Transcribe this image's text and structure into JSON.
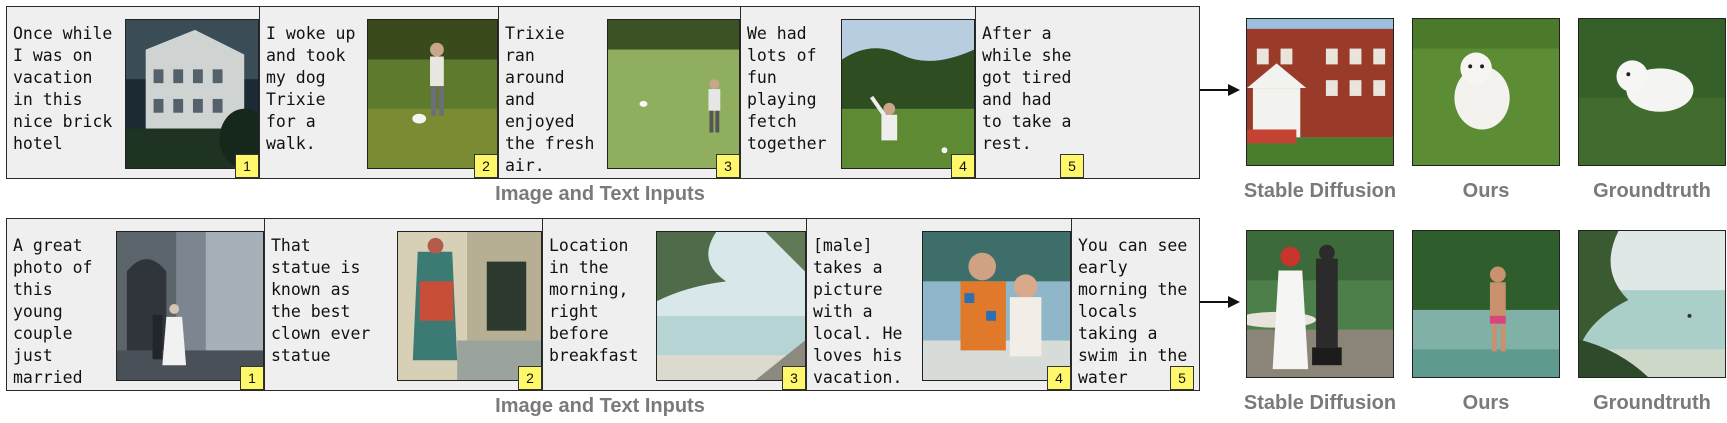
{
  "rows": [
    {
      "panels": [
        {
          "text": "Once while\nI was on\nvacation\nin this\nnice brick\nhotel",
          "number": "1",
          "image": "hotel-building-photo"
        },
        {
          "text": "I woke up\nand took\nmy dog\nTrixie\nfor a\nwalk.",
          "number": "2",
          "image": "man-walking-dog-photo"
        },
        {
          "text": "Trixie\nran\naround\nand\nenjoyed\nthe fresh\nair.",
          "number": "3",
          "image": "man-on-lawn-photo"
        },
        {
          "text": "We had\nlots of\nfun\nplaying\nfetch\ntogether",
          "number": "4",
          "image": "man-throwing-ball-photo"
        },
        {
          "text": "After a\nwhile she\ngot tired\nand had\nto take a\nrest.",
          "number": "5",
          "image": ""
        }
      ],
      "caption": "Image and Text Inputs",
      "outputs": [
        {
          "label": "Stable Diffusion",
          "image": "brick-hotel-generated"
        },
        {
          "label": "Ours",
          "image": "white-dog-running-generated"
        },
        {
          "label": "Groundtruth",
          "image": "white-dog-resting-photo"
        }
      ]
    },
    {
      "panels": [
        {
          "text": "A great\nphoto of\nthis\nyoung\ncouple\njust\nmarried",
          "number": "1",
          "image": "wedding-couple-photo"
        },
        {
          "text": "That\nstatue is\nknown as\nthe best\nclown ever\nstatue",
          "number": "2",
          "image": "clown-statue-photo"
        },
        {
          "text": "Location\nin the\nmorning,\nright\nbefore\nbreakfast",
          "number": "3",
          "image": "beach-morning-photo"
        },
        {
          "text": "[male]\ntakes a\npicture\nwith a\nlocal. He\nloves his\nvacation.",
          "number": "4",
          "image": "man-with-local-photo"
        },
        {
          "text": "You can see\nearly\nmorning the\nlocals\ntaking a\nswim in the\nwater",
          "number": "5",
          "image": ""
        }
      ],
      "caption": "Image and Text Inputs",
      "outputs": [
        {
          "label": "Stable Diffusion",
          "image": "couple-with-statue-generated"
        },
        {
          "label": "Ours",
          "image": "man-swimming-generated"
        },
        {
          "label": "Groundtruth",
          "image": "beach-swimmers-photo"
        }
      ]
    }
  ]
}
